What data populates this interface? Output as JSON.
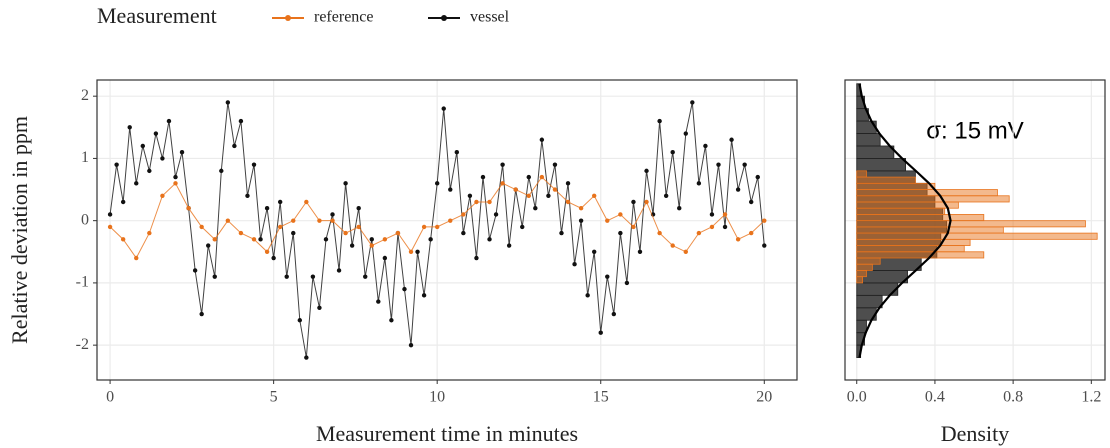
{
  "legend_title": "Measurement",
  "chart_data": [
    {
      "type": "line",
      "xlabel": "Measurement time in minutes",
      "ylabel": "Relative deviation in ppm",
      "xlim": [
        -0.4,
        21
      ],
      "ylim": [
        -2.56,
        2.26
      ],
      "xticks": [
        0,
        5,
        10,
        15,
        20
      ],
      "yticks": [
        -2,
        -1,
        0,
        1,
        2
      ],
      "grid": true,
      "series": [
        {
          "name": "reference",
          "color": "#e8731c",
          "x": [
            0,
            0.4,
            0.8,
            1.2,
            1.6,
            2,
            2.4,
            2.8,
            3.2,
            3.6,
            4,
            4.4,
            4.8,
            5.2,
            5.6,
            6,
            6.4,
            6.8,
            7.2,
            7.6,
            8,
            8.4,
            8.8,
            9.2,
            9.6,
            10,
            10.4,
            10.8,
            11.2,
            11.6,
            12,
            12.4,
            12.8,
            13.2,
            13.6,
            14,
            14.4,
            14.8,
            15.2,
            15.6,
            16,
            16.4,
            16.8,
            17.2,
            17.6,
            18,
            18.4,
            18.8,
            19.2,
            19.6,
            20
          ],
          "values": [
            -0.1,
            -0.3,
            -0.6,
            -0.2,
            0.4,
            0.6,
            0.2,
            -0.1,
            -0.3,
            0,
            -0.2,
            -0.3,
            -0.5,
            -0.1,
            0,
            0.3,
            0,
            0,
            -0.2,
            -0.1,
            -0.4,
            -0.3,
            -0.2,
            -0.5,
            -0.1,
            -0.1,
            0,
            0.1,
            0.3,
            0.3,
            0.6,
            0.5,
            0.4,
            0.7,
            0.5,
            0.3,
            0.2,
            0.4,
            0,
            0.1,
            -0.1,
            0.3,
            -0.2,
            -0.4,
            -0.5,
            -0.2,
            -0.1,
            0.1,
            -0.3,
            -0.2,
            0
          ]
        },
        {
          "name": "vessel",
          "color": "#111111",
          "x": [
            0,
            0.2,
            0.4,
            0.6,
            0.8,
            1,
            1.2,
            1.4,
            1.6,
            1.8,
            2,
            2.2,
            2.4,
            2.6,
            2.8,
            3,
            3.2,
            3.4,
            3.6,
            3.8,
            4,
            4.2,
            4.4,
            4.6,
            4.8,
            5,
            5.2,
            5.4,
            5.6,
            5.8,
            6,
            6.2,
            6.4,
            6.6,
            6.8,
            7,
            7.2,
            7.4,
            7.6,
            7.8,
            8,
            8.2,
            8.4,
            8.6,
            8.8,
            9,
            9.2,
            9.4,
            9.6,
            9.8,
            10,
            10.2,
            10.4,
            10.6,
            10.8,
            11,
            11.2,
            11.4,
            11.6,
            11.8,
            12,
            12.2,
            12.4,
            12.6,
            12.8,
            13,
            13.2,
            13.4,
            13.6,
            13.8,
            14,
            14.2,
            14.4,
            14.6,
            14.8,
            15,
            15.2,
            15.4,
            15.6,
            15.8,
            16,
            16.2,
            16.4,
            16.6,
            16.8,
            17,
            17.2,
            17.4,
            17.6,
            17.8,
            18,
            18.2,
            18.4,
            18.6,
            18.8,
            19,
            19.2,
            19.4,
            19.6,
            19.8,
            20
          ],
          "values": [
            0.1,
            0.9,
            0.3,
            1.5,
            0.6,
            1.2,
            0.8,
            1.4,
            1,
            1.6,
            0.7,
            1.1,
            0.2,
            -0.8,
            -1.5,
            -0.4,
            -0.9,
            0.8,
            1.9,
            1.2,
            1.6,
            0.4,
            0.9,
            -0.3,
            0.2,
            -0.6,
            0.3,
            -0.9,
            -0.2,
            -1.6,
            -2.2,
            -0.9,
            -1.4,
            -0.3,
            0.1,
            -0.8,
            0.6,
            -0.4,
            0.2,
            -0.9,
            -0.3,
            -1.3,
            -0.6,
            -1.6,
            -0.2,
            -1.1,
            -2,
            -0.5,
            -1.2,
            -0.3,
            0.6,
            1.8,
            0.5,
            1.1,
            -0.2,
            0.4,
            -0.6,
            0.7,
            -0.3,
            0.1,
            0.9,
            -0.4,
            0.5,
            -0.1,
            0.7,
            0.2,
            1.3,
            0.4,
            0.9,
            -0.2,
            0.6,
            -0.7,
            0,
            -1.2,
            -0.5,
            -1.8,
            -0.9,
            -1.5,
            -0.2,
            -1,
            0.3,
            -0.5,
            0.8,
            0.1,
            1.6,
            0.4,
            1.1,
            0.2,
            1.4,
            1.9,
            0.6,
            1.2,
            0.1,
            0.9,
            -0.1,
            1.3,
            0.5,
            0.9,
            0.3,
            0.7,
            -0.4
          ]
        }
      ]
    },
    {
      "type": "histogram",
      "xlabel": "Density",
      "annotation": "σ: 15 mV",
      "xlim": [
        -0.06,
        1.27
      ],
      "ylim": [
        -2.56,
        2.26
      ],
      "xticks": [
        {
          "value": 0,
          "label": "0.0"
        },
        0.4,
        0.8,
        1.2
      ],
      "yticks": [
        -2,
        -1,
        0,
        1,
        2
      ],
      "grid": true,
      "series": [
        {
          "name": "vessel",
          "color": "#222222",
          "bins": [
            -2.2,
            -2,
            -1.8,
            -1.6,
            -1.4,
            -1.2,
            -1,
            -0.8,
            -0.6,
            -0.4,
            -0.2,
            0,
            0.2,
            0.4,
            0.6,
            0.8,
            1,
            1.2,
            1.4,
            1.6,
            1.8,
            2,
            2.2
          ],
          "values": [
            0.02,
            0.04,
            0.05,
            0.1,
            0.13,
            0.21,
            0.26,
            0.33,
            0.41,
            0.43,
            0.46,
            0.44,
            0.4,
            0.36,
            0.3,
            0.25,
            0.19,
            0.12,
            0.1,
            0.06,
            0.04,
            0.02
          ]
        },
        {
          "name": "reference",
          "color": "#e8731c",
          "bins": [
            -1,
            -0.9,
            -0.8,
            -0.7,
            -0.6,
            -0.5,
            -0.4,
            -0.3,
            -0.2,
            -0.1,
            0,
            0.1,
            0.2,
            0.3,
            0.4,
            0.5,
            0.6,
            0.7,
            0.8
          ],
          "values": [
            0.03,
            0.05,
            0.08,
            0.12,
            0.65,
            0.55,
            0.58,
            1.23,
            0.75,
            1.17,
            0.65,
            0.45,
            0.52,
            0.78,
            0.72,
            0.4,
            0.3,
            0.05
          ]
        }
      ],
      "curve": {
        "color": "#000000",
        "y": [
          -2.2,
          -2,
          -1.8,
          -1.6,
          -1.4,
          -1.2,
          -1,
          -0.8,
          -0.6,
          -0.4,
          -0.2,
          0,
          0.2,
          0.4,
          0.6,
          0.8,
          1,
          1.2,
          1.4,
          1.6,
          1.8,
          2,
          2.2
        ],
        "values": [
          0.014,
          0.026,
          0.046,
          0.075,
          0.116,
          0.169,
          0.232,
          0.302,
          0.37,
          0.427,
          0.466,
          0.48,
          0.466,
          0.427,
          0.37,
          0.302,
          0.232,
          0.169,
          0.116,
          0.075,
          0.046,
          0.026,
          0.014
        ]
      }
    }
  ]
}
